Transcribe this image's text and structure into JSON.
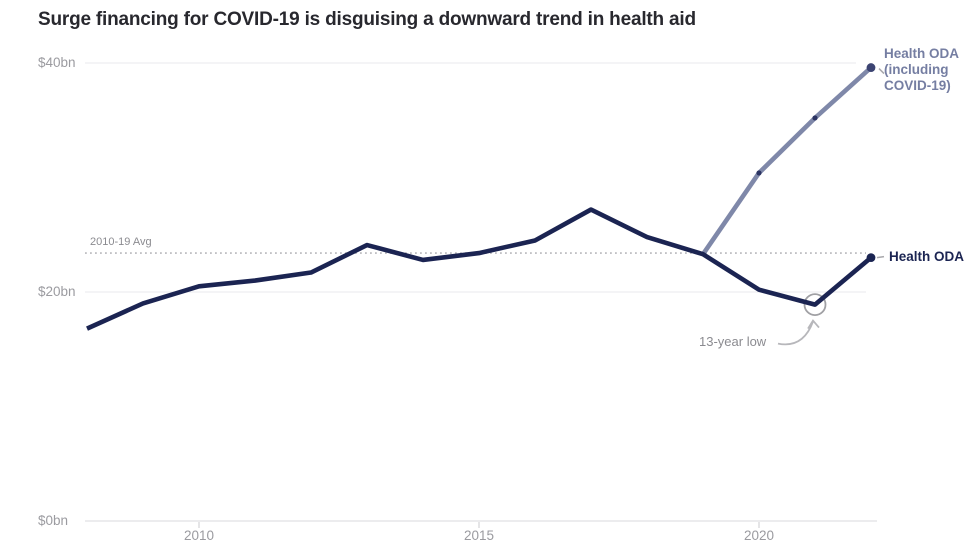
{
  "title": "Surge financing for COVID-19 is disguising a downward trend in health aid",
  "colors": {
    "health_oda": "#1b2452",
    "health_oda_covid": "#7f88a9",
    "grid": "#ededf0",
    "axis_line": "#e5e5e8",
    "avg_dotted": "#b8b8bc",
    "annotation_gray": "#a0a0a4",
    "axis_text": "#9b9ba0"
  },
  "chart_data": {
    "type": "line",
    "title": "Surge financing for COVID-19 is disguising a downward trend in health aid",
    "xlabel": "",
    "ylabel": "",
    "xlim": [
      2008,
      2022
    ],
    "ylim": [
      0,
      40
    ],
    "grid": "horizontal-only",
    "yticks": [
      {
        "value": 40,
        "label": "$40bn"
      },
      {
        "value": 20,
        "label": "$20bn"
      },
      {
        "value": 0,
        "label": "$0bn"
      }
    ],
    "xticks": [
      {
        "year": 2010,
        "label": "2010"
      },
      {
        "year": 2015,
        "label": "2015"
      },
      {
        "year": 2020,
        "label": "2020"
      }
    ],
    "average_line": {
      "label": "2010-19 Avg",
      "value": 23.4
    },
    "series": [
      {
        "name": "Health ODA (including COVID-19)",
        "label_lines": [
          "Health ODA",
          "(including",
          "COVID-19)"
        ],
        "color": "#7f88a9",
        "marker_color": "#2c3463",
        "end_dot_color": "#3c4472",
        "mid_marker_years": [
          2020,
          2021
        ],
        "years": [
          2019,
          2020,
          2021,
          2022
        ],
        "values": [
          23.3,
          30.4,
          35.2,
          39.6
        ]
      },
      {
        "name": "Health ODA",
        "label_lines": [
          "Health ODA"
        ],
        "color": "#1b2452",
        "end_dot_color": "#1b2452",
        "mid_marker_years": [],
        "years": [
          2008,
          2009,
          2010,
          2011,
          2012,
          2013,
          2014,
          2015,
          2016,
          2017,
          2018,
          2019,
          2020,
          2021,
          2022
        ],
        "values": [
          16.8,
          19.0,
          20.5,
          21.0,
          21.7,
          24.1,
          22.8,
          23.4,
          24.5,
          27.2,
          24.8,
          23.3,
          20.2,
          18.9,
          23.0
        ]
      }
    ],
    "annotations": [
      {
        "label": "13-year low",
        "year": 2021,
        "value": 18.9,
        "series": "Health ODA"
      }
    ],
    "legend_position": "right-of-line-ends"
  }
}
